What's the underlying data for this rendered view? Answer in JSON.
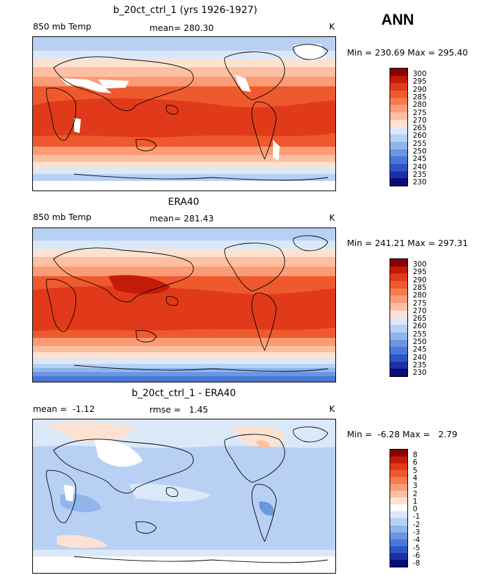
{
  "header": {
    "season": "ANN"
  },
  "panels": [
    {
      "title": "b_20ct_ctrl_1 (yrs 1926-1927)",
      "left_label": "850 mb Temp",
      "center_label": "mean= 280.30",
      "right_label": "K",
      "minmax": "Min = 230.69 Max = 295.40",
      "colorbar_labels": [
        "300",
        "295",
        "290",
        "285",
        "280",
        "275",
        "270",
        "265",
        "260",
        "255",
        "250",
        "245",
        "240",
        "235",
        "230"
      ]
    },
    {
      "title": "ERA40",
      "left_label": "850 mb Temp",
      "center_label": "mean= 281.43",
      "right_label": "K",
      "minmax": "Min = 241.21 Max = 297.31",
      "colorbar_labels": [
        "300",
        "295",
        "290",
        "285",
        "280",
        "275",
        "270",
        "265",
        "260",
        "255",
        "250",
        "245",
        "240",
        "235",
        "230"
      ]
    },
    {
      "title": "b_20ct_ctrl_1 - ERA40",
      "left_label": "mean =  -1.12",
      "center_label": "rmse =   1.45",
      "right_label": "K",
      "minmax": "Min =  -6.28 Max =   2.79",
      "colorbar_labels": [
        "8",
        "6",
        "5",
        "4",
        "3",
        "2",
        "1",
        "0",
        "-1",
        "-2",
        "-3",
        "-4",
        "-5",
        "-6",
        "-8"
      ]
    }
  ],
  "colors": {
    "abs_scale": [
      "#8b0000",
      "#c41a0a",
      "#e03a1a",
      "#ee5a2e",
      "#f77b4d",
      "#fb9c76",
      "#fcbfa2",
      "#fde2d2",
      "#dbe8f8",
      "#b8d0f3",
      "#90b5ec",
      "#6a96e2",
      "#4a78d8",
      "#2c56c8",
      "#1a30a8",
      "#0a0a7a"
    ],
    "diff_scale": [
      "#8b0000",
      "#c41a0a",
      "#e03a1a",
      "#ee5a2e",
      "#f77b4d",
      "#fb9c76",
      "#fcbfa2",
      "#fde2d2",
      "#ffffff",
      "#dbe8f8",
      "#b8d0f3",
      "#90b5ec",
      "#6a96e2",
      "#4a78d8",
      "#2c56c8",
      "#1a30a8",
      "#0a0a7a"
    ]
  }
}
